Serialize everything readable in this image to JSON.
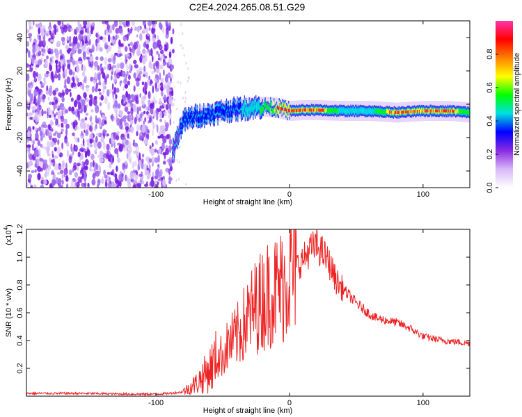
{
  "page": {
    "title": "C2E4.2024.265.08.51.G29"
  },
  "chart_data": [
    {
      "type": "heatmap",
      "xlabel": "Height of straight line (km)",
      "ylabel": "Frequency (Hz)",
      "xlim": [
        -197,
        135
      ],
      "ylim": [
        -50,
        50
      ],
      "xticks": [
        -100,
        0,
        100
      ],
      "xtick_labels": [
        "-100",
        "0",
        "100"
      ],
      "yticks": [
        -40,
        -20,
        0,
        20,
        40
      ],
      "ytick_labels": [
        "-40",
        "-20",
        "0",
        "20",
        "40"
      ],
      "colorbar": {
        "label": "Normalized spectral amplitude",
        "range": [
          0,
          1
        ],
        "ticks": [
          0.0,
          0.2,
          0.4,
          0.6,
          0.8
        ],
        "tick_labels": [
          "0.0",
          "0.2",
          "0.4",
          "0.6",
          "0.8"
        ],
        "colormap": [
          "#ffffff",
          "#d8b8f8",
          "#8a2be2",
          "#0000ff",
          "#00e0e0",
          "#00ff00",
          "#ffff00",
          "#ff8000",
          "#ff0000",
          "#ff33aa"
        ]
      },
      "noise_region_x": [
        -197,
        -87
      ],
      "signal_track": {
        "x": [
          -88,
          -80,
          -70,
          -60,
          -50,
          -40,
          -30,
          -20,
          -10,
          0,
          10,
          20,
          40,
          60,
          80,
          100,
          120,
          135
        ],
        "freq": [
          -28,
          -10,
          -7,
          -6,
          -4,
          -3,
          -2,
          -1.5,
          -2,
          -4,
          -3.5,
          -3.5,
          -4,
          -4,
          -5,
          -4,
          -4,
          -5
        ],
        "amplitude": [
          0.3,
          0.4,
          0.45,
          0.5,
          0.45,
          0.5,
          0.55,
          0.7,
          0.85,
          0.9,
          0.95,
          0.95,
          0.6,
          0.6,
          0.95,
          0.95,
          0.9,
          0.7
        ]
      },
      "grid": false
    },
    {
      "type": "line",
      "xlabel": "Height of straight line (km)",
      "ylabel": "SNR (10 * v/v)",
      "yscale_label": "(x10",
      "yscale_exp": "4",
      "xlim": [
        -197,
        135
      ],
      "ylim": [
        0,
        12000
      ],
      "xticks": [
        -100,
        0,
        100
      ],
      "xtick_labels": [
        "-100",
        "0",
        "100"
      ],
      "yticks": [
        2000,
        4000,
        6000,
        8000,
        10000,
        12000
      ],
      "ytick_labels": [
        "0.2",
        "0.4",
        "0.6",
        "0.8",
        "1.0",
        "1.2"
      ],
      "color": "#ee2222",
      "series": [
        {
          "x": [
            -197,
            -180,
            -160,
            -140,
            -120,
            -100,
            -90,
            -80,
            -75,
            -70,
            -65,
            -60,
            -55,
            -50,
            -45,
            -40,
            -35,
            -30,
            -25,
            -20,
            -15,
            -10,
            -5,
            0,
            5,
            10,
            15,
            20,
            25,
            30,
            35,
            40,
            45,
            50,
            55,
            60,
            65,
            70,
            75,
            80,
            85,
            90,
            95,
            100,
            105,
            110,
            115,
            120,
            125,
            130,
            135
          ],
          "y": [
            200,
            200,
            200,
            180,
            150,
            150,
            200,
            300,
            600,
            900,
            1400,
            1900,
            2600,
            3000,
            3800,
            4200,
            5000,
            5800,
            6500,
            7000,
            7500,
            7600,
            8000,
            8800,
            9300,
            9800,
            10500,
            10800,
            10300,
            9500,
            8300,
            7700,
            7200,
            6700,
            6300,
            5900,
            5600,
            5500,
            5400,
            5300,
            5100,
            4900,
            4600,
            4300,
            4200,
            4100,
            4000,
            3950,
            3900,
            3850,
            3800
          ]
        }
      ],
      "grid": false
    }
  ]
}
